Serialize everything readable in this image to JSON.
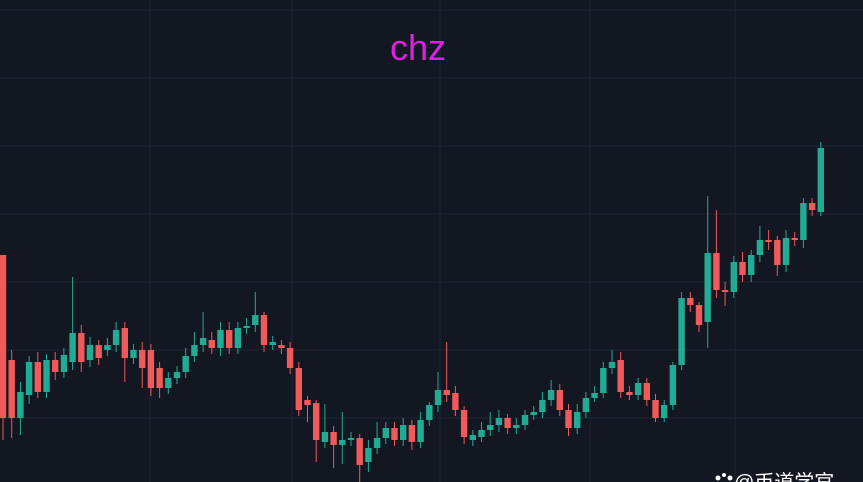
{
  "chart_data": {
    "type": "candlestick",
    "title": "chz",
    "watermark": "@币道学官",
    "up_color": "#22ab94",
    "down_color": "#f05a5a",
    "title_color": "#e020e0",
    "ylim": [
      0,
      482
    ],
    "open": [
      227,
      122,
      64,
      87,
      120,
      90,
      122,
      110,
      120,
      149,
      122,
      137,
      132,
      137,
      154,
      124,
      132,
      132,
      114,
      94,
      104,
      110,
      126,
      137,
      142,
      134,
      152,
      134,
      154,
      157,
      167,
      137,
      137,
      134,
      114,
      82,
      79,
      40,
      50,
      37,
      42,
      44,
      20,
      34,
      44,
      54,
      42,
      57,
      40,
      62,
      77,
      92,
      89,
      72,
      42,
      45,
      52,
      57,
      64,
      54,
      57,
      67,
      70,
      82,
      92,
      72,
      54,
      70,
      84,
      89,
      114,
      122,
      90,
      87,
      99,
      82,
      64,
      77,
      117,
      184,
      177,
      160,
      229,
      192,
      190,
      220,
      207,
      227,
      242,
      242,
      217,
      244,
      242,
      279,
      270
    ],
    "high": [
      227,
      132,
      100,
      126,
      130,
      128,
      130,
      134,
      205,
      157,
      145,
      142,
      144,
      160,
      160,
      138,
      140,
      138,
      120,
      110,
      116,
      134,
      150,
      170,
      150,
      160,
      160,
      160,
      164,
      190,
      170,
      146,
      142,
      140,
      120,
      86,
      82,
      78,
      56,
      70,
      50,
      48,
      42,
      60,
      60,
      60,
      64,
      62,
      70,
      80,
      110,
      140,
      96,
      76,
      52,
      60,
      70,
      72,
      68,
      64,
      72,
      76,
      90,
      102,
      98,
      78,
      78,
      90,
      96,
      120,
      132,
      130,
      96,
      104,
      104,
      88,
      82,
      120,
      190,
      190,
      180,
      286,
      272,
      200,
      226,
      230,
      232,
      256,
      252,
      246,
      252,
      250,
      284,
      284,
      340
    ],
    "low": [
      42,
      44,
      47,
      78,
      84,
      84,
      102,
      104,
      112,
      110,
      115,
      117,
      126,
      130,
      100,
      118,
      94,
      86,
      84,
      88,
      98,
      104,
      120,
      130,
      128,
      126,
      128,
      128,
      148,
      150,
      130,
      132,
      128,
      108,
      66,
      60,
      20,
      34,
      14,
      18,
      36,
      0,
      10,
      28,
      38,
      36,
      36,
      32,
      34,
      56,
      70,
      80,
      66,
      38,
      36,
      40,
      46,
      50,
      48,
      48,
      52,
      62,
      64,
      76,
      66,
      46,
      48,
      64,
      80,
      84,
      108,
      84,
      82,
      82,
      76,
      60,
      60,
      72,
      112,
      170,
      150,
      134,
      184,
      176,
      184,
      200,
      200,
      220,
      232,
      206,
      210,
      236,
      234,
      266,
      266
    ],
    "close": [
      64,
      64,
      90,
      120,
      90,
      122,
      110,
      127,
      149,
      120,
      137,
      124,
      137,
      152,
      124,
      132,
      114,
      94,
      94,
      104,
      110,
      126,
      137,
      144,
      134,
      152,
      134,
      154,
      156,
      167,
      137,
      140,
      134,
      114,
      72,
      77,
      42,
      50,
      37,
      42,
      44,
      17,
      34,
      44,
      54,
      42,
      57,
      40,
      62,
      77,
      92,
      87,
      72,
      45,
      47,
      52,
      57,
      64,
      54,
      57,
      67,
      70,
      82,
      92,
      72,
      54,
      70,
      84,
      89,
      114,
      120,
      90,
      87,
      99,
      82,
      64,
      77,
      117,
      184,
      177,
      157,
      229,
      192,
      190,
      220,
      207,
      227,
      242,
      240,
      217,
      244,
      242,
      279,
      272,
      334
    ]
  }
}
